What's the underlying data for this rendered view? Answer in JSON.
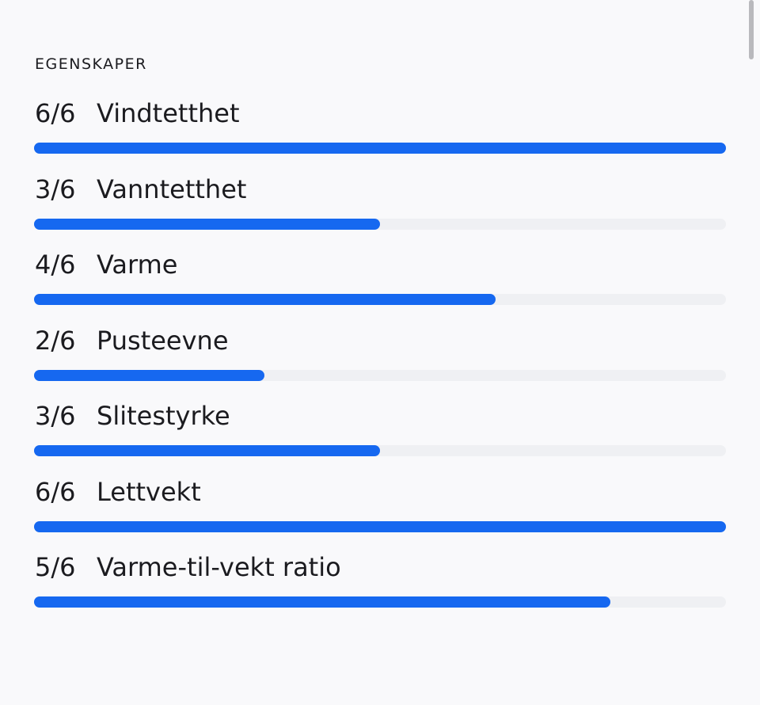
{
  "header": {
    "title": "EGENSKAPER"
  },
  "max": 6,
  "items": [
    {
      "value": 6,
      "value_label": "6/6",
      "label": "Vindtetthet"
    },
    {
      "value": 3,
      "value_label": "3/6",
      "label": "Vanntetthet"
    },
    {
      "value": 4,
      "value_label": "4/6",
      "label": "Varme"
    },
    {
      "value": 2,
      "value_label": "2/6",
      "label": "Pusteevne"
    },
    {
      "value": 3,
      "value_label": "3/6",
      "label": "Slitestyrke"
    },
    {
      "value": 6,
      "value_label": "6/6",
      "label": "Lettvekt"
    },
    {
      "value": 5,
      "value_label": "5/6",
      "label": "Varme-til-vekt ratio"
    }
  ]
}
